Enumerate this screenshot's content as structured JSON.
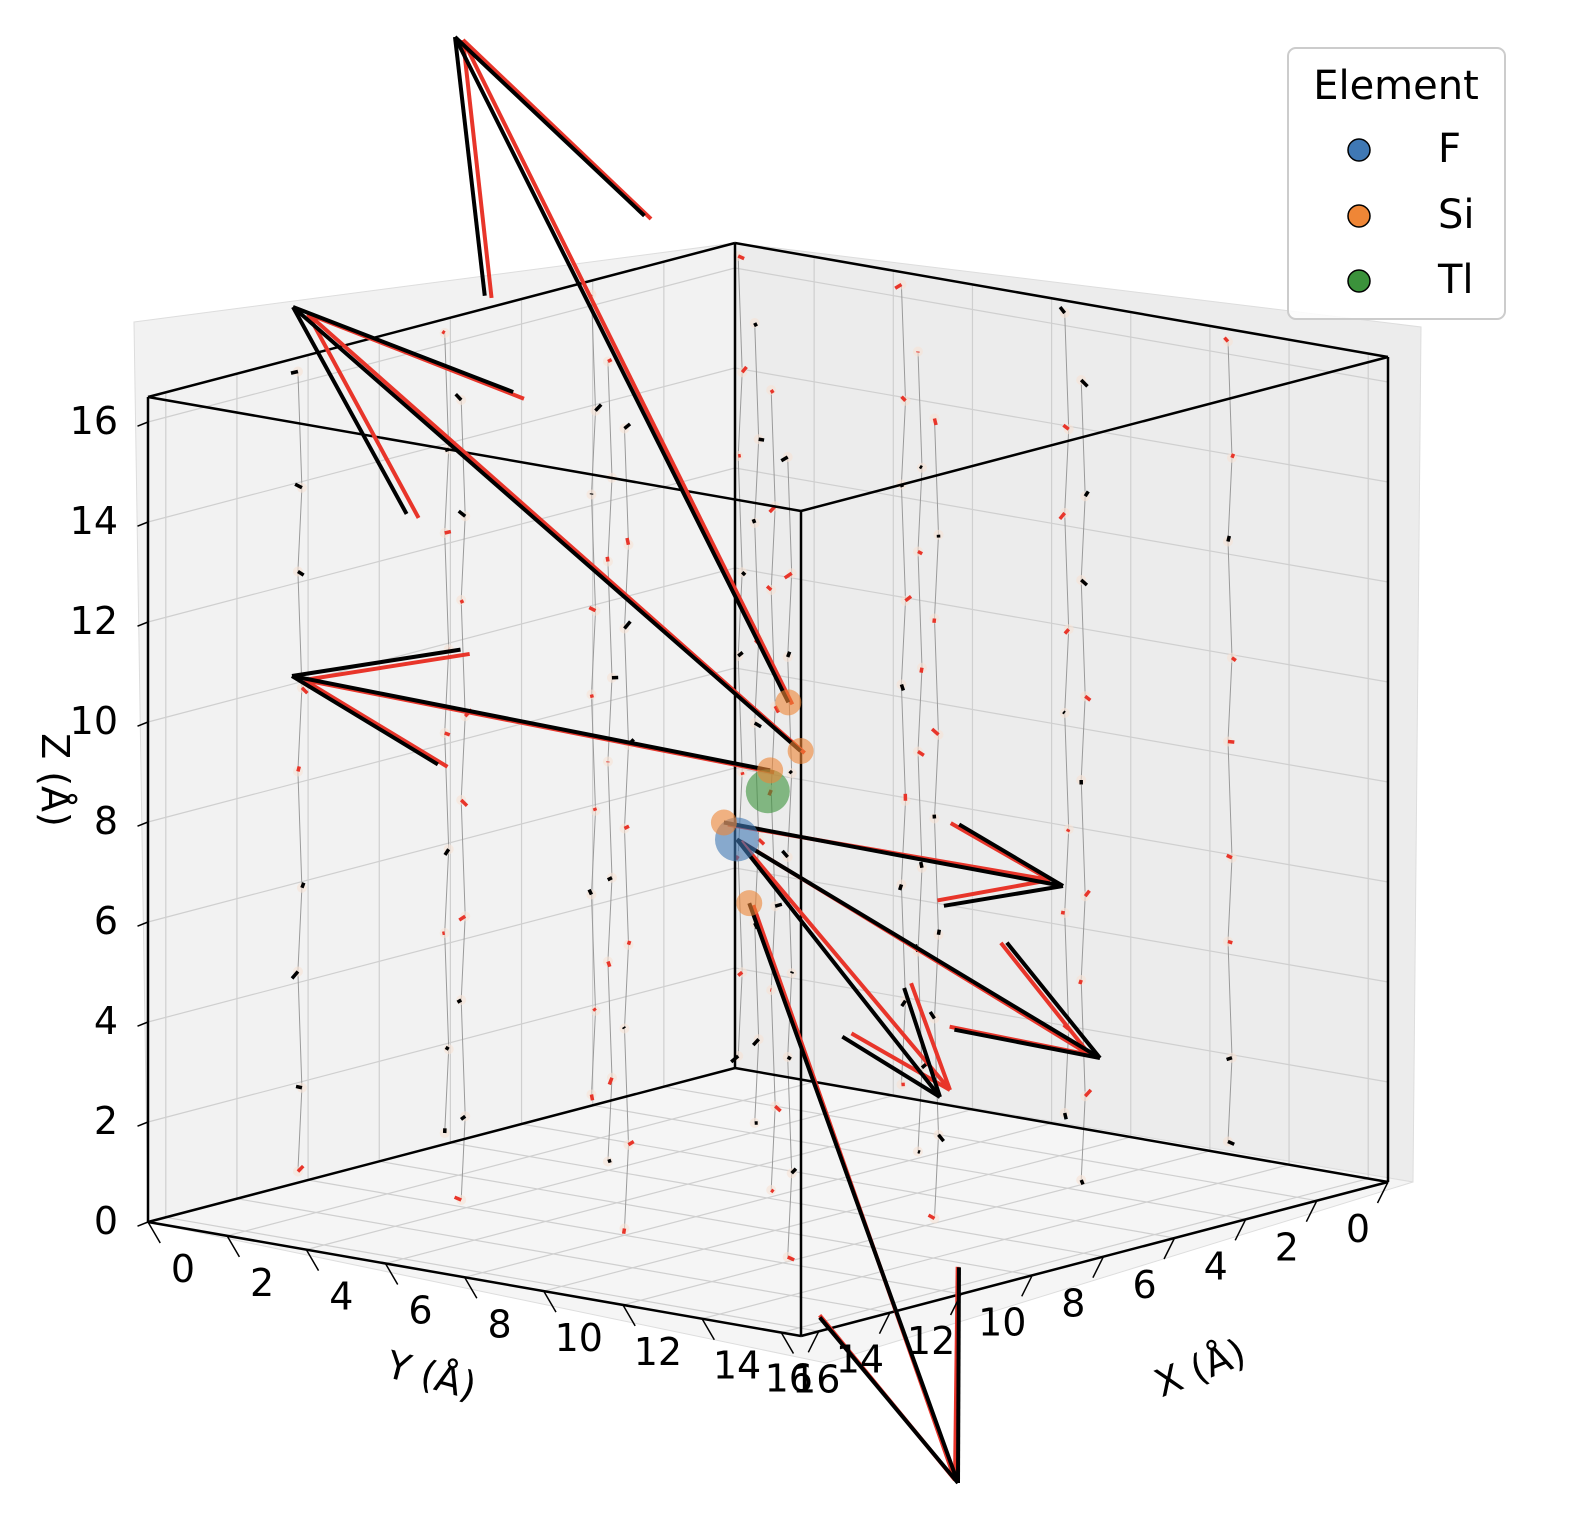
{
  "chart_data": {
    "type": "scatter",
    "title": "",
    "xlabel": "X (Å)",
    "ylabel": "Y (Å)",
    "zlabel": "Z (Å)",
    "xlim": [
      0,
      16.5
    ],
    "ylim": [
      0,
      16.5
    ],
    "zlim": [
      0,
      16.5
    ],
    "x_ticks": [
      "0",
      "2",
      "4",
      "6",
      "8",
      "10",
      "12",
      "14",
      "16"
    ],
    "y_ticks": [
      "0",
      "2",
      "4",
      "6",
      "8",
      "10",
      "12",
      "14",
      "16"
    ],
    "z_ticks": [
      "0",
      "2",
      "4",
      "6",
      "8",
      "10",
      "12",
      "14",
      "16"
    ],
    "grid": true,
    "legend": {
      "title": "Element",
      "placement": "top-right",
      "entries": [
        {
          "label": "F",
          "color": "#3f78b4"
        },
        {
          "label": "Si",
          "color": "#ef8636"
        },
        {
          "label": "Tl",
          "color": "#3b923b"
        }
      ]
    },
    "highlighted_atoms": [
      {
        "element": "Tl",
        "x": 8.2,
        "y": 8.2,
        "z": 8.2
      },
      {
        "element": "F",
        "x": 8.5,
        "y": 9.4,
        "z": 7.5
      },
      {
        "element": "Si",
        "x": 8.0,
        "y": 7.4,
        "z": 9.8
      },
      {
        "element": "Si",
        "x": 8.4,
        "y": 7.5,
        "z": 8.9
      },
      {
        "element": "Si",
        "x": 7.9,
        "y": 7.8,
        "z": 8.5
      },
      {
        "element": "Si",
        "x": 7.9,
        "y": 9.1,
        "z": 7.7
      },
      {
        "element": "Si",
        "x": 8.9,
        "y": 9.5,
        "z": 6.3
      }
    ],
    "force_colors": {
      "reference": "#e8352a",
      "predicted": "#000000"
    }
  }
}
